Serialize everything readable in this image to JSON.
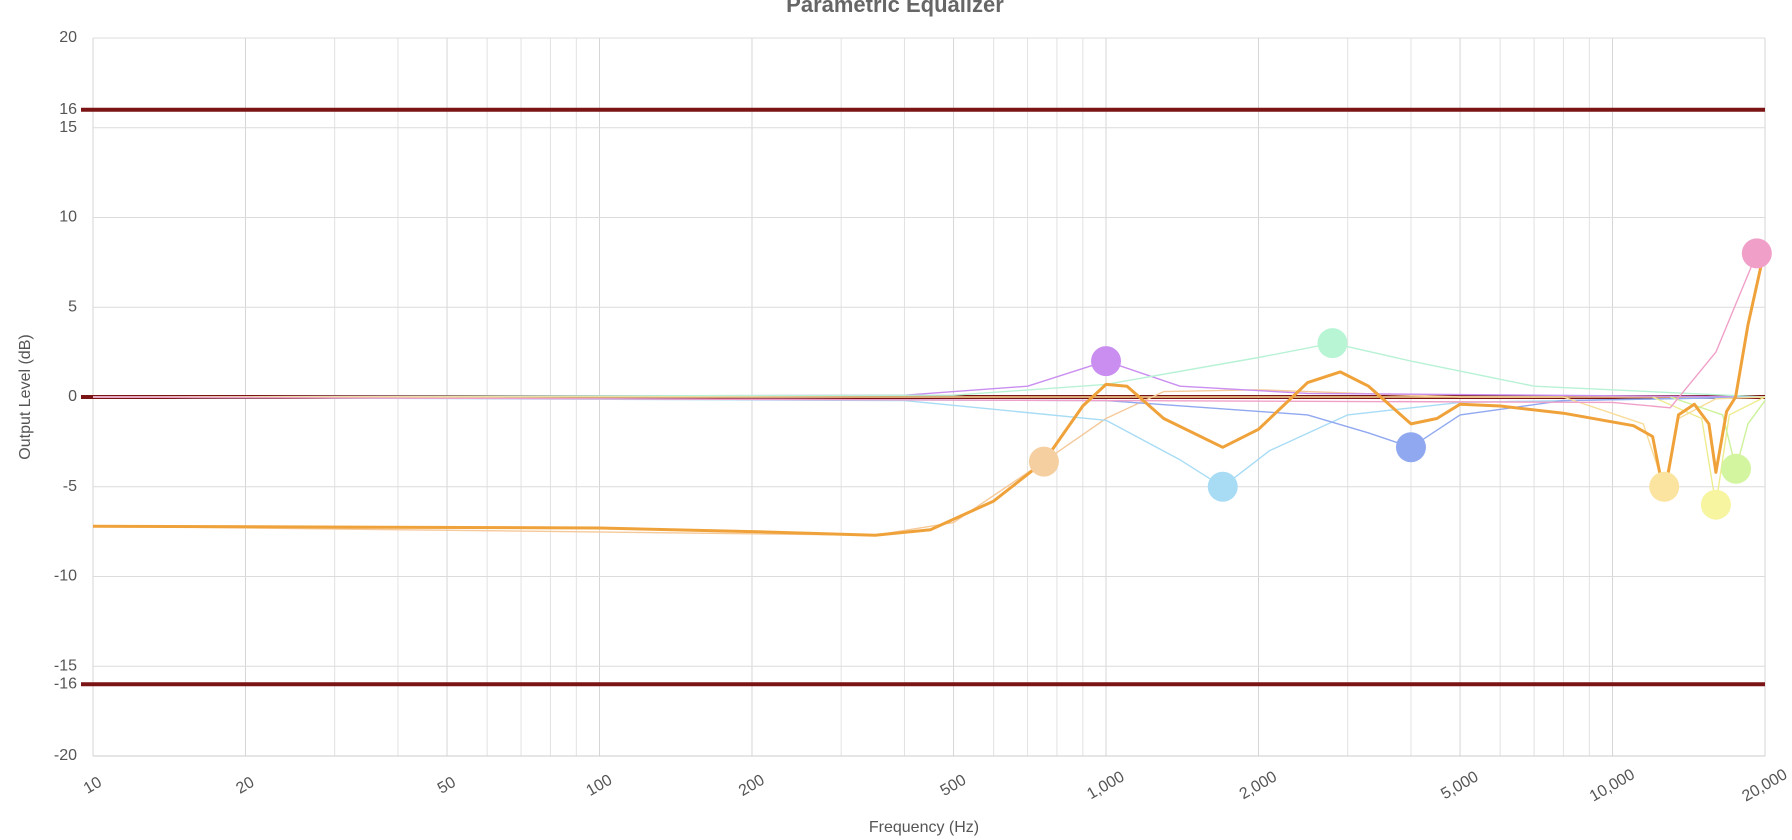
{
  "chart_data": {
    "type": "line",
    "title": "Parametric Equalizer",
    "x_label": "Frequency (Hz)",
    "y_label": "Output Level (dB)",
    "xscale": "log",
    "xlim": [
      10,
      20000
    ],
    "ylim": [
      -20,
      20
    ],
    "xticks": [
      10,
      20,
      50,
      100,
      200,
      500,
      {
        "value": 1000,
        "label": "1,000"
      },
      {
        "value": 2000,
        "label": "2,000"
      },
      {
        "value": 5000,
        "label": "5,000"
      },
      {
        "value": 10000,
        "label": "10,000"
      },
      {
        "value": 20000,
        "label": "20,000"
      }
    ],
    "xminor": [
      30,
      40,
      60,
      70,
      80,
      90,
      300,
      400,
      600,
      700,
      800,
      900,
      3000,
      4000,
      6000,
      7000,
      8000,
      9000
    ],
    "yticks": [
      -20,
      -16,
      -15,
      -10,
      -5,
      0,
      5,
      10,
      15,
      16,
      20
    ],
    "grid": true,
    "hlines": [
      16,
      0,
      -16
    ],
    "hline_color": "#7b1414",
    "series": [
      {
        "color": "#f5c99a",
        "x": [
          10,
          350,
          500,
          754,
          1000,
          1300,
          2000,
          5000,
          20000
        ],
        "values": [
          -7.2,
          -7.7,
          -7,
          -3.6,
          -1.2,
          0.3,
          0.4,
          0,
          0
        ]
      },
      {
        "color": "#c98ef0",
        "x": [
          10,
          400,
          700,
          1000,
          1400,
          2500,
          20000
        ],
        "values": [
          0,
          0.1,
          0.6,
          2,
          0.6,
          0.2,
          0
        ]
      },
      {
        "color": "#a8dcf5",
        "x": [
          10,
          400,
          1000,
          1400,
          1700,
          2100,
          3000,
          5000,
          20000
        ],
        "values": [
          0,
          -0.2,
          -1.3,
          -3.5,
          -5,
          -3,
          -1,
          -0.3,
          0
        ]
      },
      {
        "color": "#b8f2d5",
        "x": [
          10,
          500,
          1000,
          2000,
          2800,
          4000,
          7000,
          20000
        ],
        "values": [
          0,
          0.1,
          0.7,
          2.2,
          3,
          2,
          0.6,
          0
        ]
      },
      {
        "color": "#90a8f0",
        "x": [
          10,
          1000,
          2500,
          3300,
          4000,
          5000,
          8000,
          20000
        ],
        "values": [
          0,
          -0.2,
          -1,
          -2,
          -2.8,
          -1,
          -0.2,
          0
        ]
      },
      {
        "color": "#f8dc9a",
        "x": [
          10,
          8000,
          11500,
          12650,
          13500,
          16000,
          20000
        ],
        "values": [
          0,
          0,
          -1.5,
          -5,
          -1.2,
          -0.1,
          0
        ]
      },
      {
        "color": "#eeec90",
        "x": [
          12000,
          15000,
          16000,
          17000,
          20000
        ],
        "values": [
          0,
          -1.2,
          -6,
          -1,
          0
        ]
      },
      {
        "color": "#cdf29a",
        "x": [
          13000,
          16500,
          17530,
          18500,
          20000
        ],
        "values": [
          0,
          -1,
          -4,
          -1.5,
          -0.2
        ]
      },
      {
        "color": "#f0a0c8",
        "x": [
          10,
          10000,
          13000,
          16000,
          19270,
          20000
        ],
        "values": [
          0,
          -0.3,
          -0.6,
          2.5,
          8,
          8
        ]
      },
      {
        "color": "#f0a23a",
        "width": 3,
        "x": [
          10,
          100,
          200,
          350,
          450,
          600,
          754,
          900,
          1000,
          1100,
          1300,
          1700,
          2000,
          2500,
          2900,
          3300,
          4000,
          4500,
          5000,
          6000,
          8000,
          11000,
          12000,
          12650,
          13500,
          14500,
          15500,
          16000,
          16800,
          17500,
          18500,
          20000
        ],
        "values": [
          -7.2,
          -7.3,
          -7.5,
          -7.7,
          -7.4,
          -5.8,
          -3.6,
          -0.5,
          0.7,
          0.6,
          -1.2,
          -2.8,
          -1.8,
          0.8,
          1.4,
          0.6,
          -1.5,
          -1.2,
          -0.4,
          -0.5,
          -0.9,
          -1.6,
          -2.2,
          -5.5,
          -1,
          -0.4,
          -1.5,
          -4.2,
          -0.8,
          0,
          4,
          8.3
        ]
      }
    ],
    "nodes": {
      "x": [
        754,
        1000,
        1700,
        2800,
        4000,
        12650,
        16000,
        17530,
        19270
      ],
      "values": [
        -3.6,
        2,
        -5,
        3,
        -2.8,
        -5,
        -6,
        -4,
        8
      ],
      "colors": [
        "#f5cfa0",
        "#c98ef0",
        "#a8dcf5",
        "#b8f5d5",
        "#90a8f0",
        "#fbe3a0",
        "#f7f5a0",
        "#d3f5a0",
        "#f0a0c8"
      ]
    }
  }
}
